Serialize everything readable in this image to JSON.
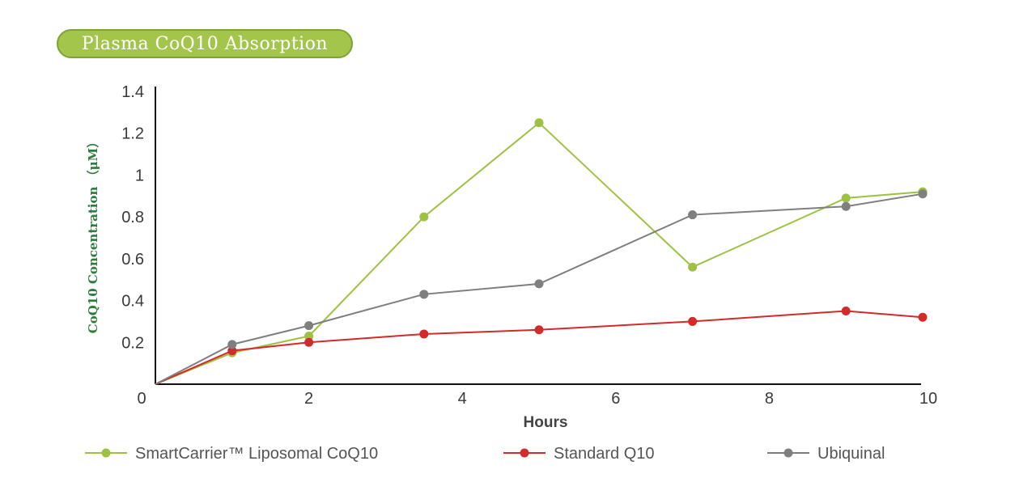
{
  "title": "Plasma CoQ10 Absorption",
  "chart_data": {
    "type": "line",
    "title": "Plasma CoQ10 Absorption",
    "xlabel": "Hours",
    "ylabel": "CoQ10 Concentration （μM）",
    "xlim": [
      0,
      10
    ],
    "ylim": [
      0,
      1.4
    ],
    "x_ticks": [
      "0",
      "2",
      "4",
      "6",
      "8",
      "10"
    ],
    "y_ticks": [
      "0.2",
      "0.4",
      "0.6",
      "0.8",
      "1",
      "1.2",
      "1.4"
    ],
    "grid": false,
    "legend_position": "bottom",
    "series": [
      {
        "name": "SmartCarrier™ Liposomal CoQ10",
        "color": "#9dc243",
        "points": [
          [
            0,
            0.0
          ],
          [
            1,
            0.15
          ],
          [
            2,
            0.23
          ],
          [
            3.5,
            0.8
          ],
          [
            5,
            1.25
          ],
          [
            7,
            0.56
          ],
          [
            9,
            0.89
          ],
          [
            10,
            0.92
          ]
        ]
      },
      {
        "name": "Standard Q10",
        "color": "#d22b2b",
        "points": [
          [
            0,
            0.0
          ],
          [
            1,
            0.16
          ],
          [
            2,
            0.2
          ],
          [
            3.5,
            0.24
          ],
          [
            5,
            0.26
          ],
          [
            7,
            0.3
          ],
          [
            9,
            0.35
          ],
          [
            10,
            0.32
          ]
        ]
      },
      {
        "name": "Ubiquinal",
        "color": "#7f7f7f",
        "points": [
          [
            0,
            0.0
          ],
          [
            1,
            0.19
          ],
          [
            2,
            0.28
          ],
          [
            3.5,
            0.43
          ],
          [
            5,
            0.48
          ],
          [
            7,
            0.81
          ],
          [
            9,
            0.85
          ],
          [
            10,
            0.91
          ]
        ]
      }
    ]
  }
}
